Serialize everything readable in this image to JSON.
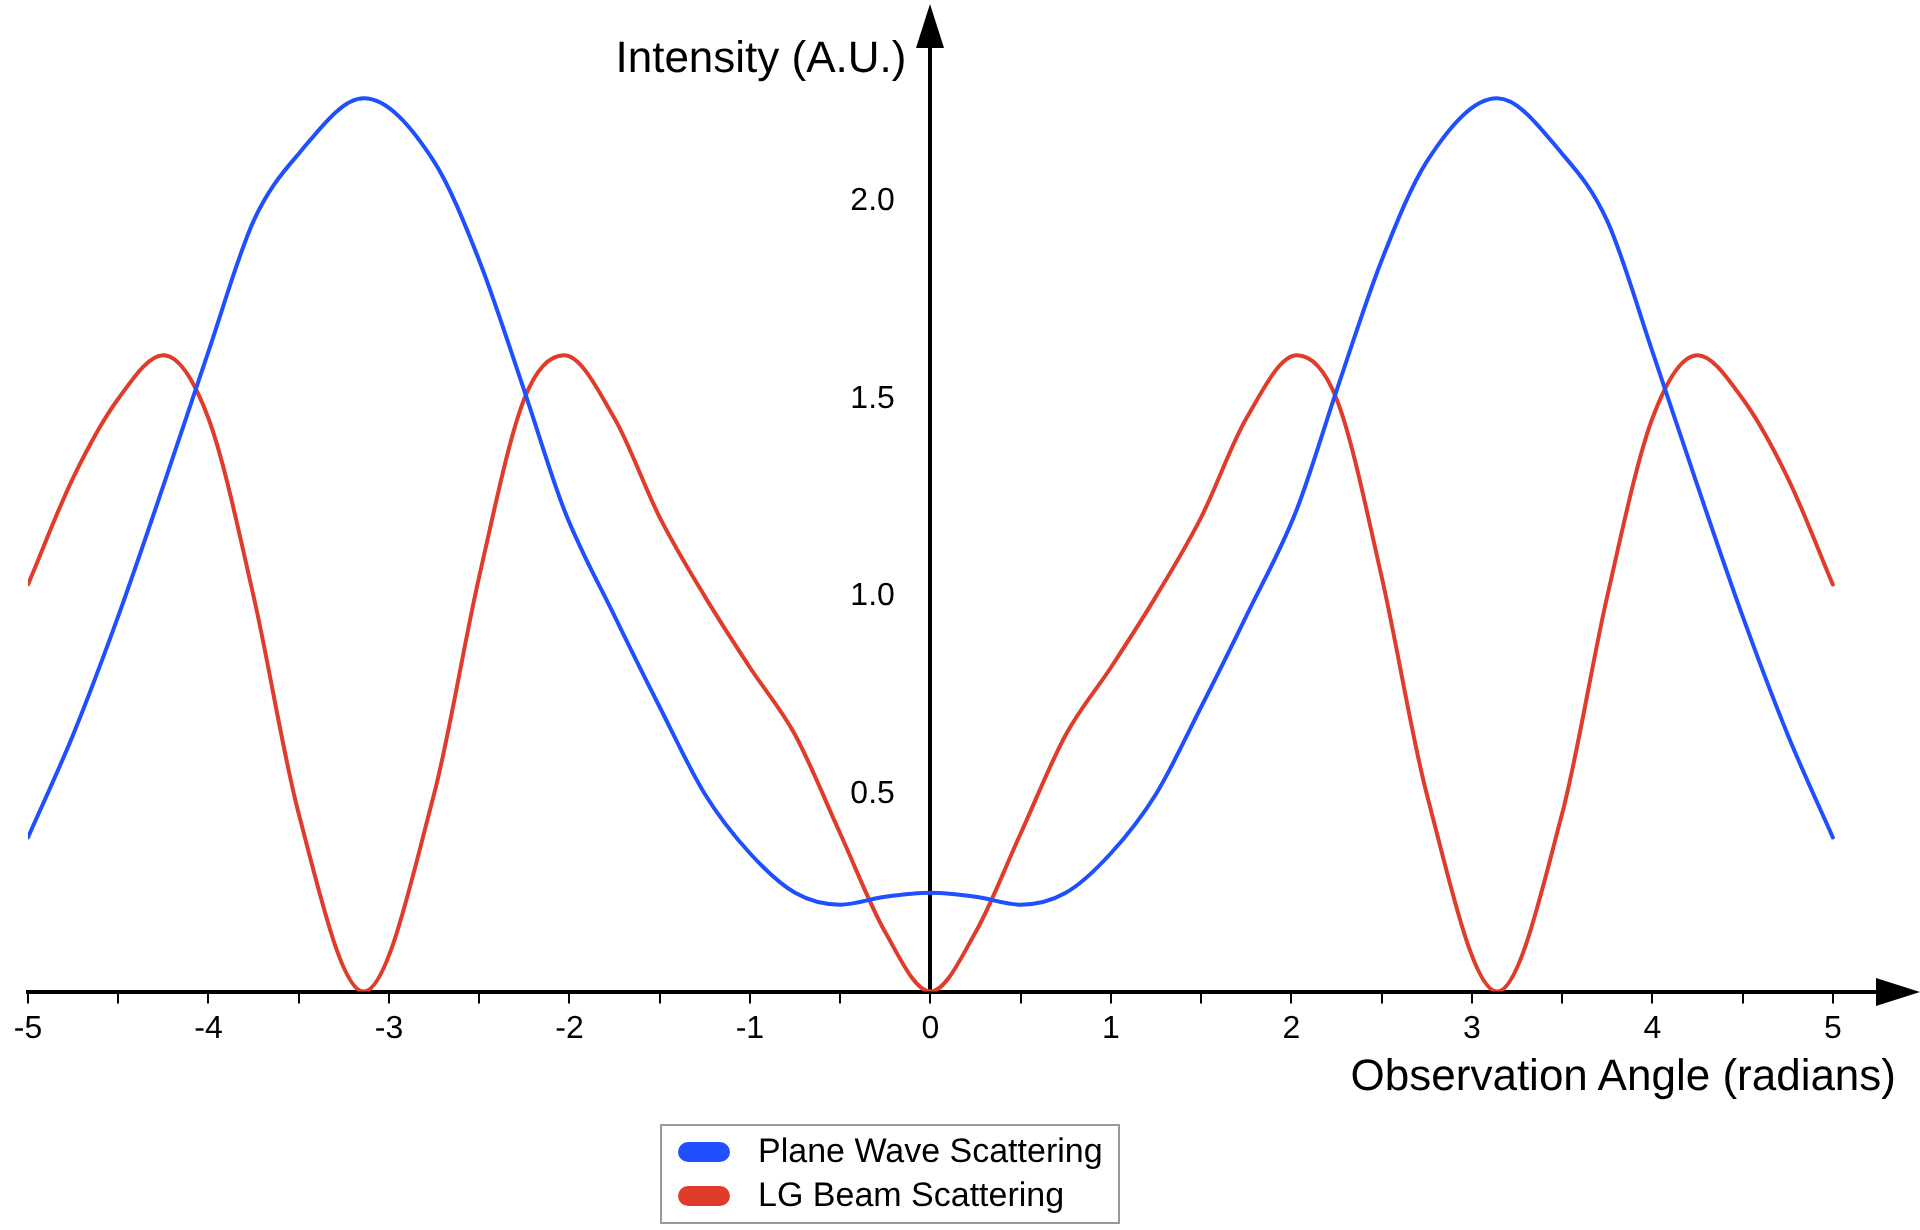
{
  "chart_data": {
    "type": "line",
    "xlabel": "Observation Angle (radians)",
    "ylabel": "Intensity (A.U.)",
    "xlim": [
      -5,
      5.35
    ],
    "ylim": [
      0,
      2.44
    ],
    "xticks": [
      -5,
      {
        "value": -4.5,
        "label": null
      },
      -4,
      {
        "value": -3.5,
        "label": null
      },
      -3,
      {
        "value": -2.5,
        "label": null
      },
      -2,
      {
        "value": -1.5,
        "label": null
      },
      -1,
      {
        "value": -0.5,
        "label": null
      },
      0,
      {
        "value": 0.5,
        "label": null
      },
      1,
      {
        "value": 1.5,
        "label": null
      },
      2,
      {
        "value": 2.5,
        "label": null
      },
      3,
      {
        "value": 3.5,
        "label": null
      },
      4,
      {
        "value": 4.5,
        "label": null
      },
      5
    ],
    "yticks": [
      0.5,
      {
        "value": 1,
        "label": "1.0"
      },
      1.5,
      {
        "value": 2,
        "label": "2.0"
      }
    ],
    "grid": false,
    "legend": "bottom",
    "marker": "none",
    "line_style": "solid",
    "x": [
      -5,
      -4.75,
      -4.5,
      -4.25,
      -4,
      -3.75,
      -3.5,
      -3.14,
      -2.75,
      -2.5,
      -2.25,
      -2.03,
      -1.75,
      -1.5,
      -1.25,
      -1,
      -0.75,
      -0.5,
      -0.25,
      0,
      0.25,
      0.5,
      0.75,
      1,
      1.25,
      1.5,
      1.75,
      2.03,
      2.25,
      2.5,
      2.75,
      3.14,
      3.5,
      3.75,
      4,
      4.25,
      4.5,
      4.75,
      5
    ],
    "series": [
      {
        "name": "Plane Wave Scattering",
        "color": "#1f4fff",
        "values": [
          0.39,
          0.65,
          0.95,
          1.28,
          1.62,
          1.95,
          2.12,
          2.26,
          2.1,
          1.85,
          1.52,
          1.22,
          0.95,
          0.72,
          0.5,
          0.35,
          0.25,
          0.22,
          0.24,
          0.25,
          0.24,
          0.22,
          0.25,
          0.35,
          0.5,
          0.72,
          0.95,
          1.22,
          1.52,
          1.85,
          2.1,
          2.26,
          2.12,
          1.95,
          1.62,
          1.28,
          0.95,
          0.65,
          0.39
        ]
      },
      {
        "name": "LG Beam Scattering",
        "color": "#e03c2c",
        "values": [
          1.03,
          1.3,
          1.5,
          1.61,
          1.45,
          1.0,
          0.45,
          0,
          0.5,
          1.05,
          1.5,
          1.61,
          1.45,
          1.2,
          1.0,
          0.82,
          0.65,
          0.4,
          0.15,
          0,
          0.15,
          0.4,
          0.65,
          0.82,
          1.0,
          1.2,
          1.45,
          1.61,
          1.5,
          1.05,
          0.5,
          0,
          0.45,
          1.0,
          1.45,
          1.61,
          1.5,
          1.3,
          1.03
        ]
      }
    ]
  }
}
